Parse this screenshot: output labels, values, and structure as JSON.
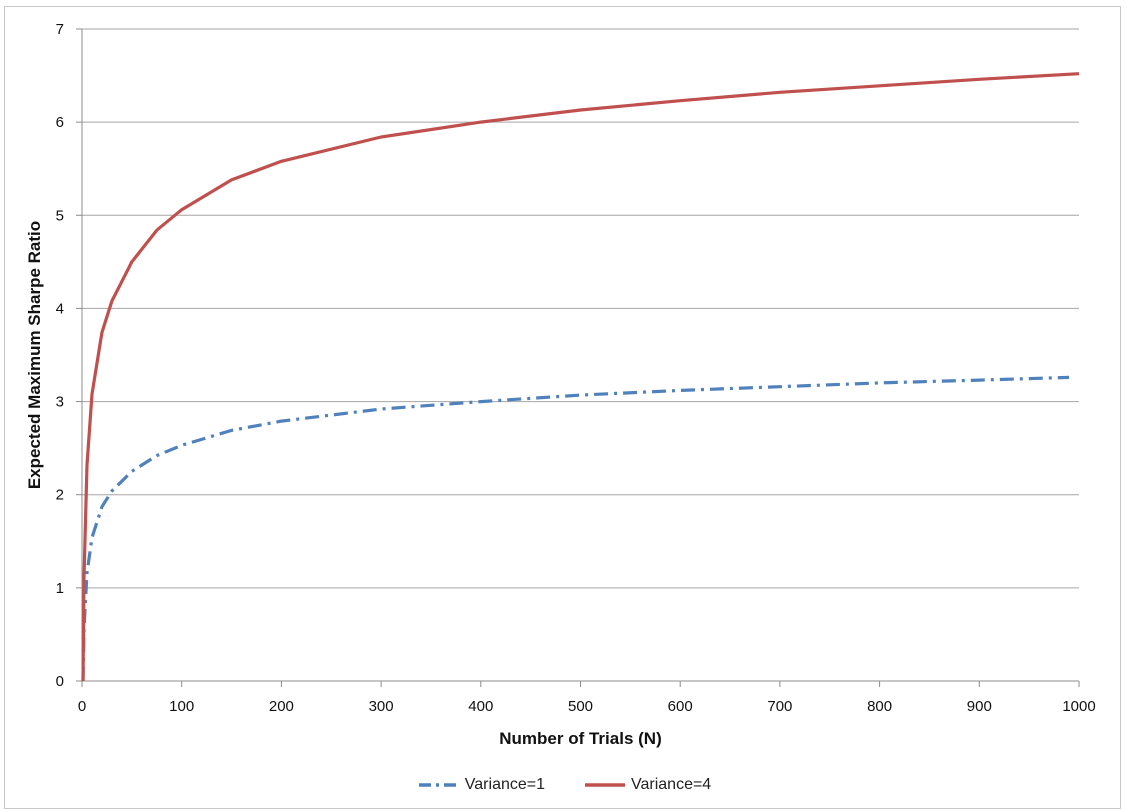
{
  "chart_data": {
    "type": "line",
    "title": "",
    "xlabel": "Number of Trials (N)",
    "ylabel": "Expected Maximum Sharpe Ratio",
    "xlim": [
      0,
      1000
    ],
    "ylim": [
      0,
      7
    ],
    "xticks": [
      0,
      100,
      200,
      300,
      400,
      500,
      600,
      700,
      800,
      900,
      1000
    ],
    "yticks": [
      0,
      1,
      2,
      3,
      4,
      5,
      6,
      7
    ],
    "grid": "horizontal",
    "legend_position": "bottom",
    "series": [
      {
        "name": "Variance=1",
        "color": "#4f81bd",
        "style": "dash-dot",
        "x": [
          1,
          2,
          5,
          10,
          20,
          30,
          50,
          75,
          100,
          150,
          200,
          300,
          400,
          500,
          600,
          700,
          800,
          900,
          990
        ],
        "y": [
          0,
          0.56,
          1.16,
          1.54,
          1.87,
          2.04,
          2.25,
          2.42,
          2.53,
          2.69,
          2.79,
          2.92,
          3.0,
          3.07,
          3.12,
          3.16,
          3.2,
          3.23,
          3.26
        ]
      },
      {
        "name": "Variance=4",
        "color": "#c0504d",
        "style": "solid",
        "x": [
          1,
          2,
          5,
          10,
          20,
          30,
          50,
          75,
          100,
          150,
          200,
          300,
          400,
          500,
          600,
          700,
          800,
          900,
          1000
        ],
        "y": [
          0,
          1.12,
          2.32,
          3.08,
          3.74,
          4.08,
          4.5,
          4.84,
          5.06,
          5.38,
          5.58,
          5.84,
          6.0,
          6.13,
          6.23,
          6.32,
          6.39,
          6.46,
          6.52
        ]
      }
    ]
  }
}
